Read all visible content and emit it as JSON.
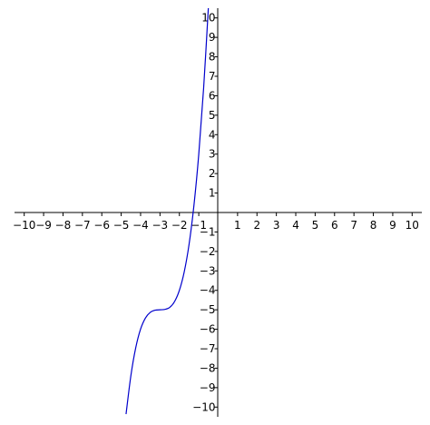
{
  "chart_data": {
    "type": "line",
    "title": "",
    "xlabel": "",
    "ylabel": "",
    "xlim": [
      -10.5,
      10.5
    ],
    "ylim": [
      -10.5,
      10.5
    ],
    "grid": false,
    "legend": "none",
    "axes_through_origin": true,
    "x_ticks": [
      -10,
      -9,
      -8,
      -7,
      -6,
      -5,
      -4,
      -3,
      -2,
      -1,
      1,
      2,
      3,
      4,
      5,
      6,
      7,
      8,
      9,
      10
    ],
    "y_ticks": [
      -10,
      -9,
      -8,
      -7,
      -6,
      -5,
      -4,
      -3,
      -2,
      -1,
      1,
      2,
      3,
      4,
      5,
      6,
      7,
      8,
      9,
      10
    ],
    "x_tick_labels": [
      "−10",
      "−9",
      "−8",
      "−7",
      "−6",
      "−5",
      "−4",
      "−3",
      "−2",
      "−1",
      "1",
      "2",
      "3",
      "4",
      "5",
      "6",
      "7",
      "8",
      "9",
      "10"
    ],
    "y_tick_labels": [
      "−10",
      "−9",
      "−8",
      "−7",
      "−6",
      "−5",
      "−4",
      "−3",
      "−2",
      "−1",
      "1",
      "2",
      "3",
      "4",
      "5",
      "6",
      "7",
      "8",
      "9",
      "10"
    ],
    "series": [
      {
        "color": "#0000cc",
        "x": [
          -4.75,
          -4.5,
          -4.25,
          -4.0,
          -3.75,
          -3.5,
          -3.25,
          -3.0,
          -2.75,
          -2.5,
          -2.25,
          -2.0,
          -1.75,
          -1.5,
          -1.25,
          -1.0,
          -0.75,
          -0.5,
          -0.46
        ],
        "y": [
          -10.36,
          -8.38,
          -6.95,
          -5.99,
          -5.42,
          -5.13,
          -5.02,
          -5.0,
          -4.98,
          -4.88,
          -4.58,
          -4.0,
          -3.05,
          -1.63,
          0.36,
          3.0,
          6.39,
          10.63,
          11.4
        ]
      }
    ]
  }
}
